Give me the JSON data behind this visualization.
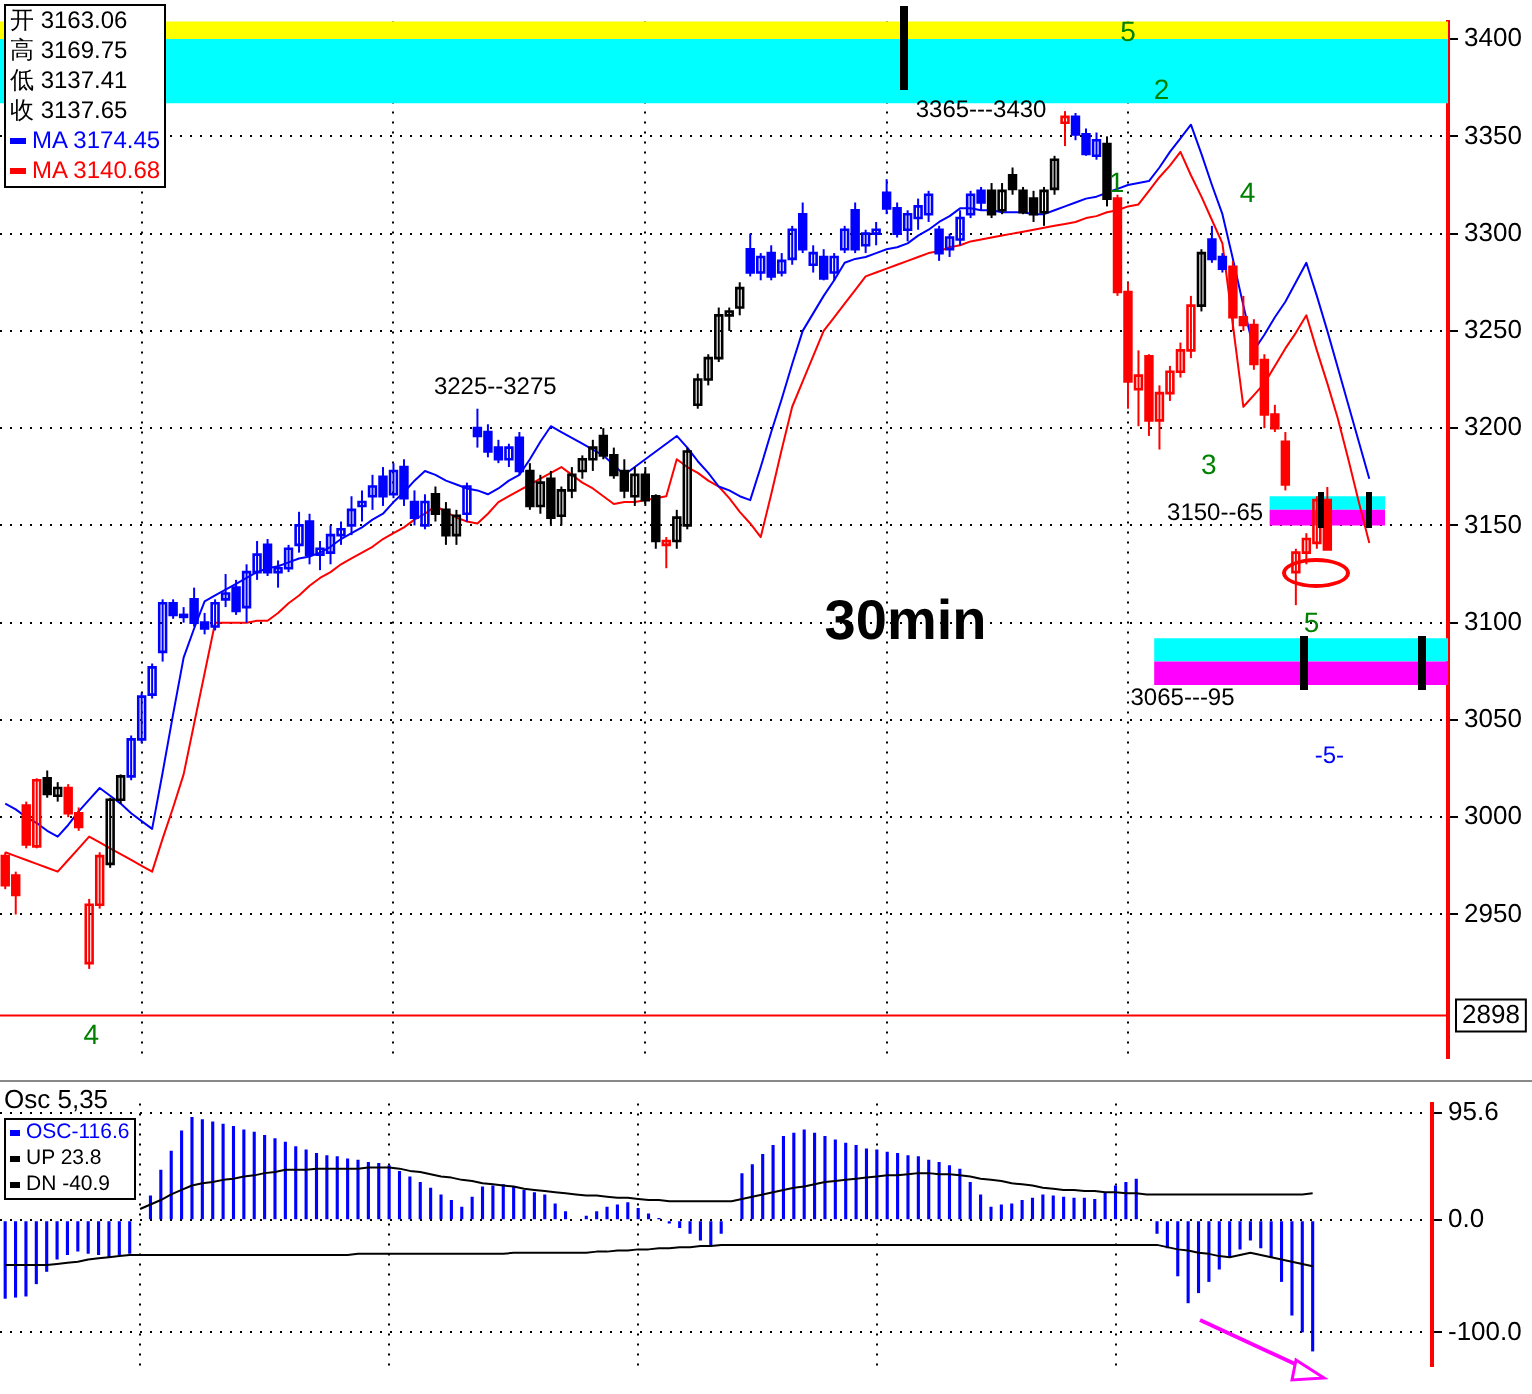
{
  "chart_data": [
    {
      "type": "candlestick",
      "categories": [
        null,
        null,
        null,
        null,
        null,
        null,
        null,
        null,
        null,
        null,
        null,
        null,
        null,
        null,
        null,
        null,
        null,
        null,
        null,
        null,
        null,
        null,
        null,
        null,
        null,
        null,
        null,
        null,
        null,
        null,
        null,
        null,
        null,
        null,
        null,
        null,
        null,
        null,
        null,
        null,
        null,
        null,
        null,
        null,
        null,
        null,
        null,
        null,
        null,
        null,
        null,
        null,
        null,
        null,
        null,
        null,
        null,
        null,
        null,
        null,
        null,
        null,
        null,
        null,
        null,
        null,
        null,
        null,
        null,
        null,
        null,
        null,
        null,
        null,
        null,
        null,
        null,
        null,
        null,
        null,
        null,
        null,
        null,
        null,
        null,
        null,
        null,
        null,
        null,
        null,
        null,
        null,
        null,
        null,
        null,
        null,
        null,
        null,
        null,
        null,
        null,
        null,
        null,
        null,
        null,
        null,
        null,
        null,
        null,
        null,
        null,
        null,
        null,
        null,
        null,
        null,
        null,
        null,
        null,
        null,
        null,
        null,
        null,
        null,
        null,
        null,
        null,
        null,
        null,
        null,
        null,
        null,
        null,
        null,
        null,
        null,
        null,
        null
      ],
      "series": [
        {
          "ohlc": [
            [
              2980,
              2982,
              2963,
              2965
            ],
            [
              2970,
              2972,
              2950,
              2960
            ],
            [
              3006,
              3008,
              2984,
              2986
            ],
            [
              2985,
              3020,
              2984,
              3019
            ],
            [
              3020,
              3024,
              3010,
              3012
            ],
            [
              3011,
              3018,
              3008,
              3015
            ],
            [
              3015,
              3017,
              3000,
              3002
            ],
            [
              3002,
              3005,
              2993,
              2995
            ],
            [
              2925,
              2958,
              2922,
              2955
            ],
            [
              2955,
              2982,
              2953,
              2980
            ],
            [
              2976,
              3010,
              2974,
              3009
            ],
            [
              3009,
              3022,
              3007,
              3021
            ],
            [
              3021,
              3042,
              3019,
              3040
            ],
            [
              3040,
              3064,
              3038,
              3062
            ],
            [
              3063,
              3079,
              3061,
              3077
            ],
            [
              3085,
              3112,
              3080,
              3110
            ],
            [
              3110,
              3112,
              3102,
              3104
            ],
            [
              3104,
              3108,
              3100,
              3103
            ],
            [
              3112,
              3118,
              3098,
              3100
            ],
            [
              3100,
              3105,
              3094,
              3097
            ],
            [
              3098,
              3112,
              3096,
              3110
            ],
            [
              3112,
              3125,
              3108,
              3115
            ],
            [
              3118,
              3122,
              3104,
              3106
            ],
            [
              3108,
              3130,
              3100,
              3126
            ],
            [
              3126,
              3142,
              3122,
              3135
            ],
            [
              3140,
              3143,
              3124,
              3126
            ],
            [
              3126,
              3132,
              3118,
              3128
            ],
            [
              3128,
              3140,
              3126,
              3138
            ],
            [
              3140,
              3157,
              3136,
              3150
            ],
            [
              3152,
              3156,
              3130,
              3135
            ],
            [
              3135,
              3142,
              3127,
              3138
            ],
            [
              3136,
              3150,
              3130,
              3145
            ],
            [
              3145,
              3152,
              3140,
              3148
            ],
            [
              3150,
              3165,
              3145,
              3158
            ],
            [
              3160,
              3168,
              3152,
              3162
            ],
            [
              3165,
              3176,
              3158,
              3170
            ],
            [
              3175,
              3180,
              3160,
              3165
            ],
            [
              3166,
              3182,
              3164,
              3178
            ],
            [
              3180,
              3184,
              3160,
              3164
            ],
            [
              3162,
              3168,
              3150,
              3154
            ],
            [
              3150,
              3166,
              3148,
              3162
            ],
            [
              3166,
              3170,
              3152,
              3156
            ],
            [
              3158,
              3162,
              3140,
              3145
            ],
            [
              3145,
              3158,
              3140,
              3155
            ],
            [
              3156,
              3172,
              3152,
              3170
            ],
            [
              3200,
              3210,
              3190,
              3196
            ],
            [
              3198,
              3202,
              3185,
              3188
            ],
            [
              3190,
              3194,
              3182,
              3184
            ],
            [
              3184,
              3192,
              3180,
              3190
            ],
            [
              3195,
              3198,
              3176,
              3178
            ],
            [
              3178,
              3182,
              3158,
              3160
            ],
            [
              3160,
              3176,
              3156,
              3172
            ],
            [
              3174,
              3178,
              3150,
              3154
            ],
            [
              3155,
              3170,
              3150,
              3168
            ],
            [
              3168,
              3180,
              3164,
              3176
            ],
            [
              3178,
              3186,
              3174,
              3184
            ],
            [
              3184,
              3194,
              3178,
              3190
            ],
            [
              3196,
              3200,
              3184,
              3186
            ],
            [
              3186,
              3190,
              3174,
              3176
            ],
            [
              3178,
              3184,
              3164,
              3168
            ],
            [
              3165,
              3180,
              3160,
              3176
            ],
            [
              3176,
              3180,
              3160,
              3163
            ],
            [
              3165,
              3166,
              3138,
              3142
            ],
            [
              3140,
              3144,
              3128,
              3142
            ],
            [
              3142,
              3158,
              3138,
              3154
            ],
            [
              3150,
              3190,
              3148,
              3188
            ],
            [
              3212,
              3228,
              3210,
              3225
            ],
            [
              3225,
              3238,
              3222,
              3236
            ],
            [
              3236,
              3262,
              3234,
              3258
            ],
            [
              3258,
              3262,
              3250,
              3260
            ],
            [
              3262,
              3275,
              3258,
              3272
            ],
            [
              3292,
              3300,
              3278,
              3280
            ],
            [
              3280,
              3290,
              3276,
              3288
            ],
            [
              3290,
              3294,
              3276,
              3278
            ],
            [
              3280,
              3290,
              3278,
              3286
            ],
            [
              3287,
              3304,
              3284,
              3302
            ],
            [
              3310,
              3316,
              3290,
              3292
            ],
            [
              3284,
              3294,
              3280,
              3290
            ],
            [
              3288,
              3292,
              3276,
              3277
            ],
            [
              3280,
              3290,
              3276,
              3288
            ],
            [
              3292,
              3304,
              3290,
              3302
            ],
            [
              3312,
              3316,
              3290,
              3292
            ],
            [
              3294,
              3302,
              3290,
              3300
            ],
            [
              3300,
              3306,
              3294,
              3302
            ],
            [
              3321,
              3328,
              3310,
              3313
            ],
            [
              3313,
              3316,
              3298,
              3300
            ],
            [
              3302,
              3312,
              3296,
              3310
            ],
            [
              3308,
              3318,
              3302,
              3314
            ],
            [
              3310,
              3322,
              3306,
              3320
            ],
            [
              3302,
              3304,
              3286,
              3290
            ],
            [
              3292,
              3300,
              3288,
              3298
            ],
            [
              3297,
              3312,
              3294,
              3308
            ],
            [
              3310,
              3322,
              3308,
              3320
            ],
            [
              3322,
              3324,
              3312,
              3316
            ],
            [
              3322,
              3326,
              3308,
              3310
            ],
            [
              3312,
              3326,
              3310,
              3322
            ],
            [
              3330,
              3334,
              3320,
              3323
            ],
            [
              3322,
              3324,
              3310,
              3311
            ],
            [
              3318,
              3322,
              3306,
              3310
            ],
            [
              3311,
              3324,
              3304,
              3322
            ],
            [
              3323,
              3340,
              3320,
              3338
            ],
            [
              3357,
              3363,
              3345,
              3360
            ],
            [
              3360,
              3362,
              3348,
              3351
            ],
            [
              3351,
              3354,
              3340,
              3341
            ],
            [
              3340,
              3352,
              3338,
              3348
            ],
            [
              3346,
              3350,
              3314,
              3318
            ],
            [
              3318,
              3320,
              3268,
              3270
            ],
            [
              3270,
              3275,
              3210,
              3224
            ],
            [
              3220,
              3240,
              3201,
              3227
            ],
            [
              3237,
              3238,
              3196,
              3204
            ],
            [
              3204,
              3222,
              3189,
              3218
            ],
            [
              3218,
              3232,
              3214,
              3229
            ],
            [
              3229,
              3244,
              3226,
              3240
            ],
            [
              3240,
              3268,
              3236,
              3263
            ],
            [
              3263,
              3292,
              3260,
              3290
            ],
            [
              3297,
              3304,
              3285,
              3287
            ],
            [
              3288,
              3290,
              3280,
              3282
            ],
            [
              3283,
              3286,
              3250,
              3257
            ],
            [
              3257,
              3268,
              3250,
              3253
            ],
            [
              3253,
              3256,
              3230,
              3233
            ],
            [
              3235,
              3238,
              3200,
              3207
            ],
            [
              3207,
              3212,
              3198,
              3200
            ],
            [
              3193,
              3198,
              3168,
              3171
            ],
            [
              3126,
              3138,
              3109,
              3136
            ],
            [
              3136,
              3146,
              3130,
              3143
            ],
            [
              3141,
              3165,
              3138,
              3163
            ],
            [
              3163.06,
              3169.75,
              3137.41,
              3137.65
            ],
            null,
            null,
            null,
            null,
            null,
            null,
            null,
            null,
            null,
            null,
            null
          ],
          "colors": [
            "#ff0000",
            "#ff0000",
            "#ff0000",
            "#ff0000",
            "#000000",
            "#000000",
            "#ff0000",
            "#ff0000",
            "#ff0000",
            "#ff0000",
            "#000000",
            "#000000",
            "#0000ff",
            "#0000ff",
            "#0000ff",
            "#0000ff",
            "#0000ff",
            "#0000ff",
            "#0000ff",
            "#0000ff",
            "#0000ff",
            "#0000ff",
            "#0000ff",
            "#0000ff",
            "#0000ff",
            "#0000ff",
            "#0000ff",
            "#0000ff",
            "#0000ff",
            "#0000ff",
            "#0000ff",
            "#0000ff",
            "#0000ff",
            "#0000ff",
            "#0000ff",
            "#0000ff",
            "#0000ff",
            "#0000ff",
            "#0000ff",
            "#0000ff",
            "#0000ff",
            "#000000",
            "#000000",
            "#000000",
            "#0000ff",
            "#0000ff",
            "#0000ff",
            "#0000ff",
            "#0000ff",
            "#0000ff",
            "#000000",
            "#000000",
            "#000000",
            "#000000",
            "#000000",
            "#000000",
            "#000000",
            "#000000",
            "#000000",
            "#000000",
            "#000000",
            "#000000",
            "#000000",
            "#ff0000",
            "#000000",
            "#000000",
            "#000000",
            "#000000",
            "#000000",
            "#000000",
            "#000000",
            "#0000ff",
            "#0000ff",
            "#0000ff",
            "#0000ff",
            "#0000ff",
            "#0000ff",
            "#0000ff",
            "#0000ff",
            "#0000ff",
            "#0000ff",
            "#0000ff",
            "#0000ff",
            "#0000ff",
            "#0000ff",
            "#0000ff",
            "#0000ff",
            "#0000ff",
            "#0000ff",
            "#0000ff",
            "#0000ff",
            "#0000ff",
            "#0000ff",
            "#0000ff",
            "#000000",
            "#000000",
            "#000000",
            "#000000",
            "#000000",
            "#000000",
            "#000000",
            "#ff0000",
            "#0000ff",
            "#0000ff",
            "#0000ff",
            "#000000",
            "#ff0000",
            "#ff0000",
            "#ff0000",
            "#ff0000",
            "#ff0000",
            "#ff0000",
            "#ff0000",
            "#ff0000",
            "#000000",
            "#0000ff",
            "#0000ff",
            "#ff0000",
            "#ff0000",
            "#ff0000",
            "#ff0000",
            "#ff0000",
            "#ff0000",
            "#ff0000",
            "#ff0000",
            "#ff0000",
            "#ff0000",
            null,
            null,
            null,
            null,
            null,
            null,
            null,
            null,
            null,
            null,
            null
          ]
        },
        {
          "type": "line",
          "name": "MA 3174.45",
          "color": "#0000ff",
          "values": [
            3007,
            3004,
            3000,
            2997,
            2993,
            2990,
            2996,
            3003,
            3009,
            3015,
            3011,
            3007,
            3002,
            2998,
            2994,
            3023,
            3053,
            3082,
            3097,
            3111,
            3114,
            3117,
            3120,
            3123,
            3126,
            3128,
            3129,
            3131,
            3133,
            3134,
            3136,
            3139,
            3143,
            3146,
            3149,
            3153,
            3156,
            3162,
            3167,
            3173,
            3178,
            3176,
            3173,
            3171,
            3169,
            3168,
            3166,
            3169,
            3173,
            3176,
            3184,
            3193,
            3201,
            3198,
            3195,
            3192,
            3189,
            3186,
            3181,
            3176,
            3180,
            3184,
            3188,
            3192,
            3196,
            3190,
            3183,
            3177,
            3170,
            3168,
            3165,
            3163,
            3180,
            3198,
            3215,
            3233,
            3250,
            3259,
            3268,
            3276,
            3285,
            3287,
            3288,
            3290,
            3292,
            3293,
            3295,
            3299,
            3302,
            3306,
            3309,
            3313,
            3313,
            3312,
            3312,
            3311,
            3311,
            3311,
            3310,
            3310,
            3312,
            3314,
            3316,
            3318,
            3319,
            3321,
            3323,
            3325,
            3326,
            3327,
            3334,
            3342,
            3349,
            3356,
            3341,
            3325,
            3310,
            3287,
            3263,
            3240,
            3248,
            3257,
            3265,
            3275,
            3285,
            3268,
            3250,
            3231,
            3212,
            3193,
            3174,
            null,
            null,
            null,
            null,
            null,
            null,
            null
          ]
        },
        {
          "type": "line",
          "name": "MA 3140.68",
          "color": "#ff0000",
          "values": [
            2982,
            2980,
            2978,
            2976,
            2974,
            2972,
            2978,
            2984,
            2990,
            2987,
            2984,
            2981,
            2978,
            2975,
            2972,
            2989,
            3005,
            3022,
            3048,
            3074,
            3100,
            3100,
            3100,
            3100,
            3101,
            3101,
            3105,
            3110,
            3114,
            3119,
            3123,
            3126,
            3130,
            3133,
            3136,
            3139,
            3143,
            3146,
            3149,
            3153,
            3156,
            3160,
            3157,
            3154,
            3152,
            3151,
            3156,
            3162,
            3165,
            3168,
            3171,
            3174,
            3177,
            3180,
            3176,
            3172,
            3169,
            3165,
            3161,
            3162,
            3162,
            3163,
            3164,
            3165,
            3184,
            3180,
            3177,
            3173,
            3170,
            3164,
            3157,
            3151,
            3144,
            3166,
            3189,
            3211,
            3224,
            3237,
            3250,
            3257,
            3264,
            3271,
            3278,
            3280,
            3282,
            3284,
            3286,
            3288,
            3290,
            3291,
            3293,
            3294,
            3296,
            3297,
            3298,
            3299,
            3300,
            3301,
            3302,
            3303,
            3304,
            3305,
            3306,
            3308,
            3309,
            3311,
            3312,
            3314,
            3315,
            3322,
            3329,
            3335,
            3342,
            3330,
            3319,
            3307,
            3295,
            3253,
            3211,
            3217,
            3223,
            3232,
            3241,
            3249,
            3258,
            3240,
            3223,
            3205,
            3184,
            3162,
            3141,
            null,
            null,
            null,
            null,
            null,
            null,
            null
          ]
        }
      ],
      "ylim": [
        2876,
        3409
      ],
      "yticks": [
        2950,
        3000,
        3050,
        3100,
        3150,
        3200,
        3250,
        3300,
        3350,
        3400
      ],
      "grid": true,
      "legend": "top left",
      "marker": "none",
      "annotations": [
        "开 3163.06",
        "高 3169.75",
        "低 3137.41",
        "收 3137.65",
        "3225--3275",
        "3365---3430",
        "3150--65",
        "3065---95",
        "30min",
        "5",
        "2",
        "1",
        "3",
        "4",
        "5",
        "4",
        "-5-"
      ],
      "bands": [
        {
          "axis": "y",
          "from": 3400,
          "to": 3409,
          "color": "#ffff00"
        },
        {
          "axis": "y",
          "from": 3367,
          "to": 3400,
          "color": "#00ffff"
        },
        {
          "axis": "y",
          "from": 3158,
          "to": 3165,
          "color": "#00ffff"
        },
        {
          "axis": "y",
          "from": 3150,
          "to": 3158,
          "color": "#ff00ff"
        },
        {
          "axis": "y",
          "from": 3080,
          "to": 3092,
          "color": "#00ffff"
        },
        {
          "axis": "y",
          "from": 3068,
          "to": 3080,
          "color": "#ff00ff"
        }
      ],
      "ref_lines": [
        {
          "axis": "y",
          "value": 2898,
          "label": "2898",
          "color": "#ff0000"
        }
      ]
    },
    {
      "type": "bar",
      "title": "Osc 5,35",
      "categories": [
        null,
        null,
        null,
        null,
        null,
        null,
        null,
        null,
        null,
        null,
        null,
        null,
        null,
        null,
        null,
        null,
        null,
        null,
        null,
        null,
        null,
        null,
        null,
        null,
        null,
        null,
        null,
        null,
        null,
        null,
        null,
        null,
        null,
        null,
        null,
        null,
        null,
        null,
        null,
        null,
        null,
        null,
        null,
        null,
        null,
        null,
        null,
        null,
        null,
        null,
        null,
        null,
        null,
        null,
        null,
        null,
        null,
        null,
        null,
        null,
        null,
        null,
        null,
        null,
        null,
        null,
        null,
        null,
        null,
        null,
        null,
        null,
        null,
        null,
        null,
        null,
        null,
        null,
        null,
        null,
        null,
        null,
        null,
        null,
        null,
        null,
        null,
        null,
        null,
        null,
        null,
        null,
        null,
        null,
        null,
        null,
        null,
        null,
        null,
        null,
        null,
        null,
        null,
        null,
        null,
        null,
        null,
        null,
        null,
        null,
        null,
        null,
        null,
        null,
        null,
        null,
        null,
        null,
        null,
        null,
        null,
        null,
        null,
        null,
        null,
        null,
        null,
        null,
        null,
        null,
        null,
        null,
        null,
        null,
        null,
        null,
        null,
        null
      ],
      "series": [
        {
          "name": "OSC-116.6",
          "color": "#0000ff",
          "values": [
            -70,
            -69,
            -68,
            -57,
            -46,
            -35,
            -31,
            -28,
            -30,
            -31,
            -33,
            -31,
            -30,
            0,
            22,
            45,
            62,
            80,
            92,
            90,
            88,
            86,
            84,
            81,
            79,
            76,
            73,
            70,
            66,
            63,
            60,
            58,
            57,
            55,
            54,
            52,
            51,
            49,
            44,
            39,
            34,
            29,
            23,
            18,
            12,
            21,
            30,
            31,
            32,
            30,
            27,
            25,
            23,
            15,
            8,
            0,
            4,
            8,
            12,
            14,
            16,
            11,
            6,
            2,
            -3,
            -7,
            -12,
            -18,
            -23,
            -12,
            0,
            42,
            50,
            59,
            67,
            75,
            78,
            81,
            78,
            75,
            72,
            69,
            67,
            64,
            63,
            61,
            60,
            58,
            57,
            54,
            52,
            49,
            46,
            34,
            23,
            12,
            14,
            15,
            18,
            20,
            23,
            22,
            21,
            20,
            20,
            19,
            25,
            31,
            34,
            37,
            0,
            -12,
            -25,
            -50,
            -74,
            -65,
            -55,
            -44,
            -33,
            -26,
            -18,
            -25,
            -33,
            -55,
            -85,
            -100,
            -117,
            null,
            null,
            null,
            null,
            null,
            null,
            null,
            null,
            null,
            null,
            null
          ]
        },
        {
          "type": "line",
          "name": "UP 23.8",
          "color": "#000000",
          "values": [
            null,
            null,
            null,
            null,
            null,
            null,
            null,
            null,
            null,
            null,
            null,
            null,
            null,
            10,
            14,
            18,
            23,
            27,
            31,
            33,
            34,
            36,
            37,
            39,
            40,
            42,
            43,
            45,
            45,
            45,
            46,
            46,
            46,
            46,
            46,
            47,
            47,
            47,
            46,
            44,
            43,
            41,
            39,
            38,
            36,
            35,
            33,
            32,
            31,
            30,
            28,
            27,
            26,
            25,
            24,
            23,
            22,
            22,
            21,
            20,
            20,
            19,
            18,
            18,
            17,
            17,
            17,
            17,
            17,
            17,
            17,
            19,
            21,
            23,
            25,
            27,
            29,
            30,
            32,
            34,
            35,
            36,
            37,
            38,
            39,
            40,
            40,
            41,
            42,
            42,
            41,
            41,
            40,
            39,
            37,
            36,
            35,
            33,
            32,
            31,
            29,
            28,
            27,
            27,
            26,
            26,
            25,
            25,
            24,
            24,
            23,
            23,
            23,
            23,
            23,
            23,
            23,
            23,
            23,
            23,
            23,
            23,
            23,
            23,
            23,
            23,
            24,
            null,
            null,
            null,
            null,
            null,
            null,
            null,
            null,
            null,
            null,
            null
          ]
        },
        {
          "type": "line",
          "name": "DN -40.9",
          "color": "#000000",
          "values": [
            -40,
            -40,
            -40,
            -40,
            -40,
            -39,
            -38,
            -37,
            -35,
            -34,
            -33,
            -32,
            -31,
            -31,
            -31,
            -31,
            -31,
            -31,
            -31,
            -31,
            -31,
            -31,
            -31,
            -31,
            -31,
            -31,
            -31,
            -31,
            -31,
            -31,
            -31,
            -31,
            -31,
            -31,
            -30,
            -30,
            -30,
            -30,
            -30,
            -30,
            -30,
            -30,
            -30,
            -30,
            -30,
            -30,
            -30,
            -30,
            -30,
            -29,
            -29,
            -29,
            -29,
            -29,
            -29,
            -29,
            -29,
            -28,
            -28,
            -27,
            -27,
            -26,
            -26,
            -25,
            -25,
            -24,
            -24,
            -23,
            -23,
            -22,
            -22,
            -22,
            -22,
            -22,
            -22,
            -22,
            -22,
            -22,
            -22,
            -22,
            -22,
            -22,
            -22,
            -22,
            -22,
            -22,
            -22,
            -22,
            -22,
            -22,
            -22,
            -22,
            -22,
            -22,
            -22,
            -22,
            -22,
            -22,
            -22,
            -22,
            -22,
            -22,
            -22,
            -22,
            -22,
            -22,
            -22,
            -22,
            -22,
            -22,
            -22,
            -22,
            -24,
            -26,
            -27,
            -29,
            -30,
            -32,
            -33,
            -31,
            -29,
            -31,
            -33,
            -35,
            -37,
            -39,
            -41,
            null,
            null,
            null,
            null,
            null,
            null,
            null,
            null,
            null,
            null,
            null
          ]
        }
      ],
      "ylim": [
        -130,
        104
      ],
      "yticks": [
        95.6,
        {
          "value": 0,
          "label": "0.0"
        },
        {
          "value": -100,
          "label": "-100.0"
        }
      ],
      "grid": true,
      "legend": "top left",
      "marker": "none"
    }
  ]
}
